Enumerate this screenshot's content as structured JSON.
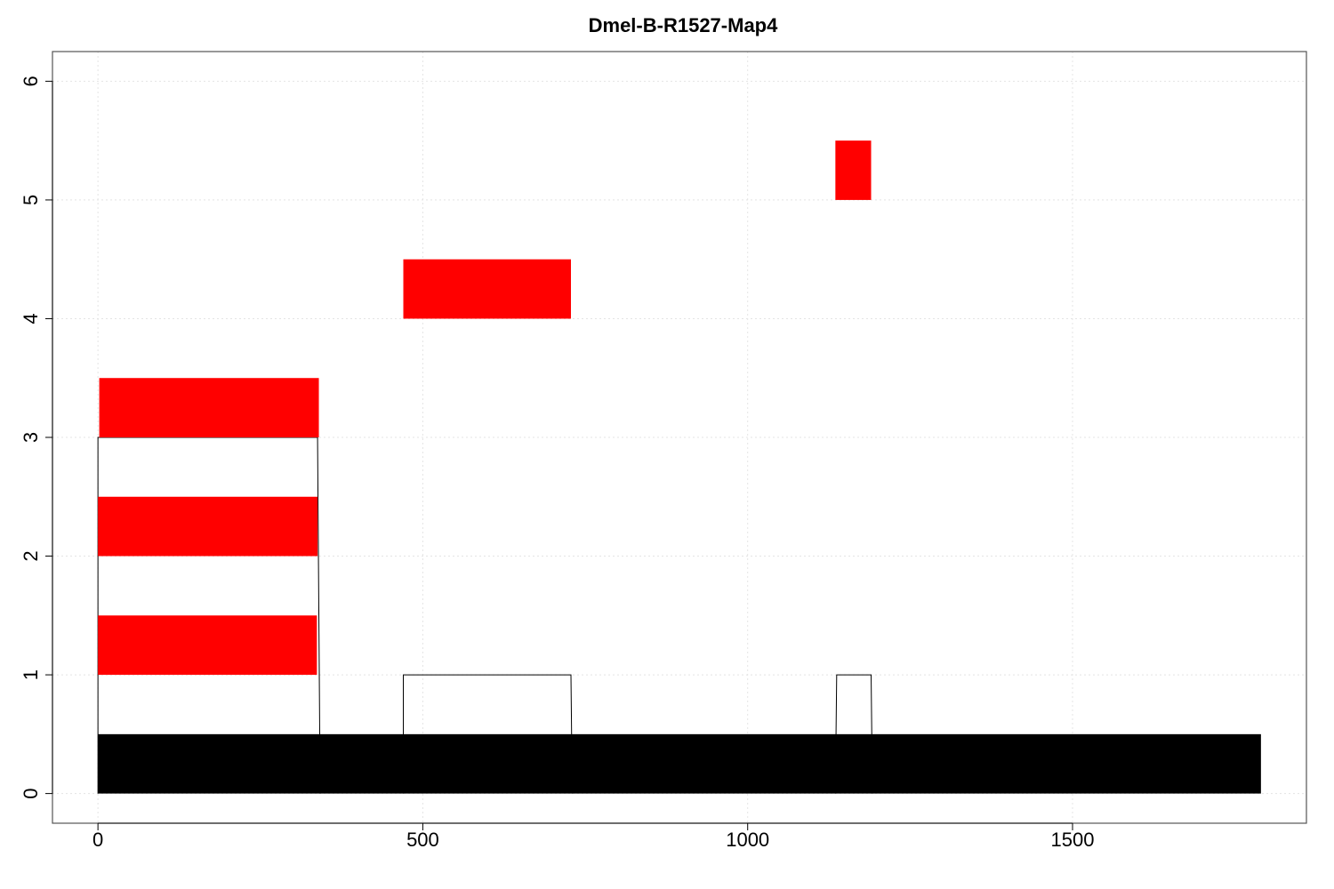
{
  "chart_data": {
    "type": "bar",
    "title": "Dmel-B-R1527-Map4",
    "xlabel": "",
    "ylabel": "",
    "xlim": [
      -70,
      1860
    ],
    "ylim": [
      -0.25,
      6.25
    ],
    "x_ticks": [
      0,
      500,
      1000,
      1500
    ],
    "y_ticks": [
      0,
      1,
      2,
      3,
      4,
      5,
      6
    ],
    "grid": true,
    "colors": {
      "segment": "#ff0000",
      "baseline": "#000000",
      "outline": "#000000",
      "connector": "#8b0000"
    },
    "baseline": {
      "x_start": 0,
      "x_end": 1790,
      "y_bottom": 0,
      "y_top": 0.5
    },
    "segments": [
      {
        "x_start": 0,
        "x_end": 337,
        "y_bottom": 1,
        "y_top": 1.5
      },
      {
        "x_start": 0,
        "x_end": 338,
        "y_bottom": 2,
        "y_top": 2.5
      },
      {
        "x_start": 2,
        "x_end": 340,
        "y_bottom": 3,
        "y_top": 3.5
      },
      {
        "x_start": 470,
        "x_end": 728,
        "y_bottom": 4,
        "y_top": 4.5
      },
      {
        "x_start": 1135,
        "x_end": 1190,
        "y_bottom": 5,
        "y_top": 5.5
      }
    ],
    "outlines": [
      {
        "points": [
          [
            0,
            0
          ],
          [
            0,
            3
          ],
          [
            2,
            3
          ],
          [
            2,
            3
          ],
          [
            338,
            3
          ],
          [
            342,
            0
          ]
        ]
      },
      {
        "points": [
          [
            470,
            0
          ],
          [
            470,
            1
          ],
          [
            728,
            1
          ],
          [
            730,
            0
          ]
        ]
      },
      {
        "points": [
          [
            1135,
            0
          ],
          [
            1137,
            1
          ],
          [
            1190,
            1
          ],
          [
            1192,
            0
          ]
        ]
      }
    ]
  }
}
